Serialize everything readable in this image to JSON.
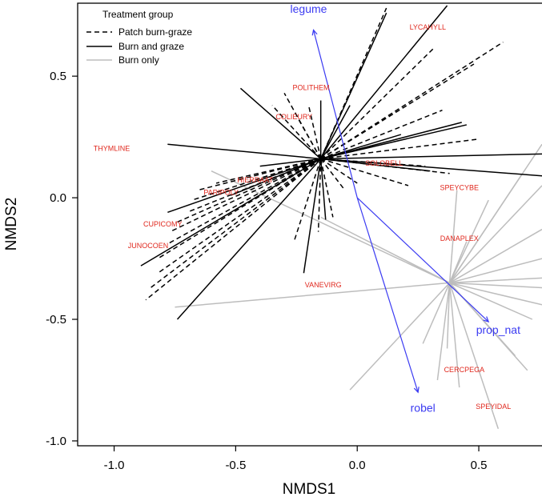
{
  "chart_data": {
    "type": "scatter",
    "xlabel": "NMDS1",
    "ylabel": "NMDS2",
    "xlim": [
      -1.15,
      0.76
    ],
    "ylim": [
      -1.02,
      0.8
    ],
    "x_ticks": [
      -1.0,
      -0.5,
      0.0,
      0.5
    ],
    "x_tick_labels": [
      "-1.0",
      "-0.5",
      "0.0",
      "0.5"
    ],
    "y_ticks": [
      -1.0,
      -0.5,
      0.0,
      0.5
    ],
    "y_tick_labels": [
      "-1.0",
      "-0.5",
      "0.0",
      "0.5"
    ],
    "grid": false,
    "legend": {
      "title": "Treatment group",
      "placement": "top-left",
      "items": [
        {
          "label": "Patch burn-graze",
          "style": "dashed",
          "color": "#000000"
        },
        {
          "label": "Burn and graze",
          "style": "solid",
          "color": "#000000"
        },
        {
          "label": "Burn only",
          "style": "solid",
          "color": "#bdbdbd"
        }
      ]
    },
    "colors": {
      "species": "#e0281e",
      "vectors": "#3b3bf2",
      "burn_only": "#a6a6a6",
      "grazed": "#000000"
    },
    "groups": [
      {
        "name": "Patch burn-graze",
        "style": "dashed",
        "color": "#000000",
        "centroid": [
          -0.15,
          0.16
        ],
        "sites": [
          [
            -0.87,
            -0.42
          ],
          [
            -0.85,
            -0.37
          ],
          [
            -0.82,
            -0.31
          ],
          [
            -0.82,
            -0.25
          ],
          [
            -0.77,
            -0.14
          ],
          [
            -0.74,
            -0.1
          ],
          [
            -0.7,
            -0.06
          ],
          [
            -0.66,
            0.03
          ],
          [
            -0.68,
            -0.01
          ],
          [
            -0.78,
            -0.19
          ],
          [
            -0.58,
            0.06
          ],
          [
            -0.35,
            0.38
          ],
          [
            -0.3,
            0.43
          ],
          [
            -0.24,
            0.32
          ],
          [
            -0.2,
            0.38
          ],
          [
            -0.26,
            -0.18
          ],
          [
            -0.1,
            -0.08
          ],
          [
            -0.16,
            -0.14
          ],
          [
            -0.05,
            0.03
          ],
          [
            0.0,
            0.06
          ],
          [
            0.12,
            0.78
          ],
          [
            0.32,
            0.62
          ],
          [
            0.48,
            0.55
          ],
          [
            0.6,
            0.64
          ],
          [
            0.49,
            0.24
          ],
          [
            0.35,
            0.36
          ],
          [
            0.28,
            0.13
          ],
          [
            0.21,
            0.05
          ],
          [
            0.38,
            0.1
          ],
          [
            -0.4,
            0.08
          ]
        ]
      },
      {
        "name": "Burn and graze",
        "style": "solid",
        "color": "#000000",
        "centroid": [
          -0.15,
          0.16
        ],
        "sites": [
          [
            -0.78,
            0.22
          ],
          [
            -0.74,
            -0.5
          ],
          [
            -0.89,
            -0.28
          ],
          [
            -0.78,
            -0.06
          ],
          [
            -0.52,
            0.01
          ],
          [
            -0.4,
            0.13
          ],
          [
            -0.22,
            -0.31
          ],
          [
            -0.13,
            -0.09
          ],
          [
            -0.48,
            0.45
          ],
          [
            -0.15,
            0.4
          ],
          [
            0.12,
            0.76
          ],
          [
            0.18,
            0.26
          ],
          [
            0.45,
            0.3
          ],
          [
            0.43,
            0.31
          ],
          [
            0.76,
            0.18
          ],
          [
            0.76,
            0.09
          ],
          [
            0.3,
            0.11
          ],
          [
            -0.03,
            0.38
          ],
          [
            0.37,
            0.79
          ]
        ]
      },
      {
        "name": "Burn only",
        "style": "solid",
        "color": "#bdbdbd",
        "centroid": [
          0.38,
          -0.35
        ],
        "sites": [
          [
            -0.75,
            -0.45
          ],
          [
            -0.6,
            0.11
          ],
          [
            -0.15,
            -0.08
          ],
          [
            -0.03,
            -0.79
          ],
          [
            0.33,
            -0.75
          ],
          [
            0.42,
            -0.78
          ],
          [
            0.58,
            -0.95
          ],
          [
            0.65,
            -0.65
          ],
          [
            0.7,
            -0.71
          ],
          [
            0.72,
            -0.5
          ],
          [
            0.76,
            -0.44
          ],
          [
            0.76,
            -0.37
          ],
          [
            0.76,
            -0.33
          ],
          [
            0.76,
            -0.25
          ],
          [
            0.76,
            -0.13
          ],
          [
            0.76,
            0.05
          ],
          [
            0.76,
            0.22
          ],
          [
            0.68,
            0.1
          ],
          [
            0.54,
            -0.01
          ],
          [
            0.45,
            -0.18
          ],
          [
            0.41,
            0.03
          ],
          [
            0.27,
            -0.6
          ],
          [
            0.37,
            -0.62
          ]
        ]
      }
    ],
    "species": [
      {
        "name": "LYCAHYLL",
        "x": 0.29,
        "y": 0.7
      },
      {
        "name": "POLITHEM",
        "x": -0.19,
        "y": 0.45
      },
      {
        "name": "COLIEURY",
        "x": -0.26,
        "y": 0.33
      },
      {
        "name": "THYMLINE",
        "x": -1.01,
        "y": 0.2
      },
      {
        "name": "SOLOBELL",
        "x": 0.11,
        "y": 0.14
      },
      {
        "name": "HIERRAAT",
        "x": -0.42,
        "y": 0.07
      },
      {
        "name": "PARIPOLY",
        "x": -0.56,
        "y": 0.02
      },
      {
        "name": "SPEYCYBE",
        "x": 0.42,
        "y": 0.04
      },
      {
        "name": "CUPICOMY",
        "x": -0.8,
        "y": -0.11
      },
      {
        "name": "JUNOCOEN",
        "x": -0.86,
        "y": -0.2
      },
      {
        "name": "DANAPLEX",
        "x": 0.42,
        "y": -0.17
      },
      {
        "name": "VANEVIRG",
        "x": -0.14,
        "y": -0.36
      },
      {
        "name": "CERCPEGA",
        "x": 0.44,
        "y": -0.71
      },
      {
        "name": "SPEYIDAL",
        "x": 0.56,
        "y": -0.86
      }
    ],
    "vectors": [
      {
        "name": "legume",
        "x": -0.18,
        "y": 0.69,
        "label_x": -0.2,
        "label_y": 0.76
      },
      {
        "name": "robel",
        "x": 0.25,
        "y": -0.8,
        "label_x": 0.27,
        "label_y": -0.88
      },
      {
        "name": "prop_nat",
        "x": 0.54,
        "y": -0.51,
        "label_x": 0.58,
        "label_y": -0.56
      }
    ]
  }
}
